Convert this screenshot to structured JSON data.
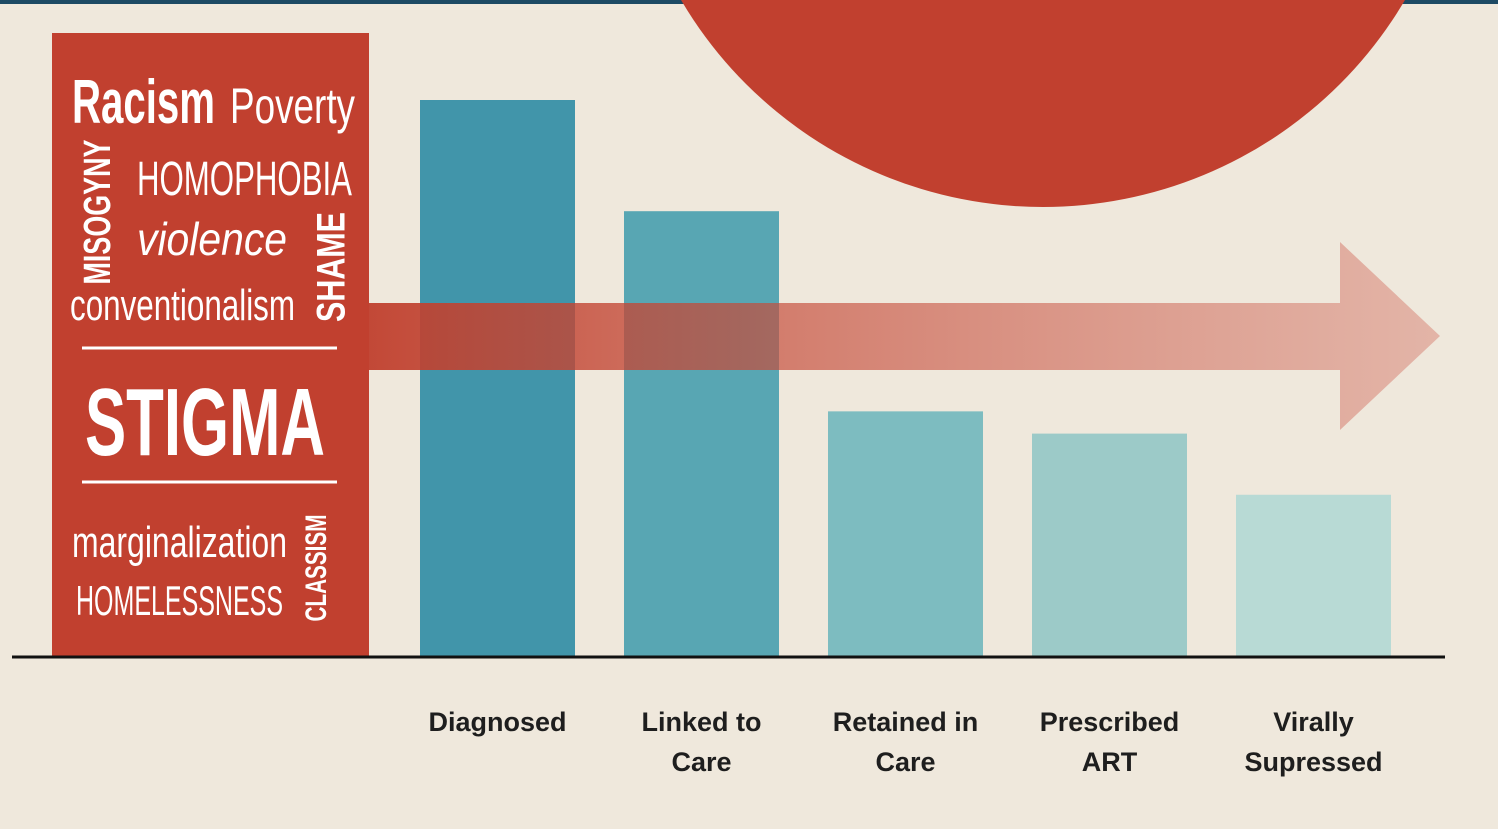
{
  "chart_data": {
    "type": "bar",
    "categories": [
      "Diagnosed",
      "Linked to Care",
      "Retained in Care",
      "Prescribed ART",
      "Virally Supressed"
    ],
    "values": [
      100,
      80,
      44,
      40,
      29
    ],
    "colors": [
      "#4195aa",
      "#58a6b3",
      "#7dbcc0",
      "#9ccac8",
      "#b8dad5"
    ],
    "words": [
      "Racism",
      "Poverty",
      "MISOGYNY",
      "HOMOPHOBIA",
      "violence",
      "SHAME",
      "conventionalism",
      "STIGMA",
      "marginalization",
      "HOMELESSNESS",
      "CLASSISM"
    ]
  }
}
